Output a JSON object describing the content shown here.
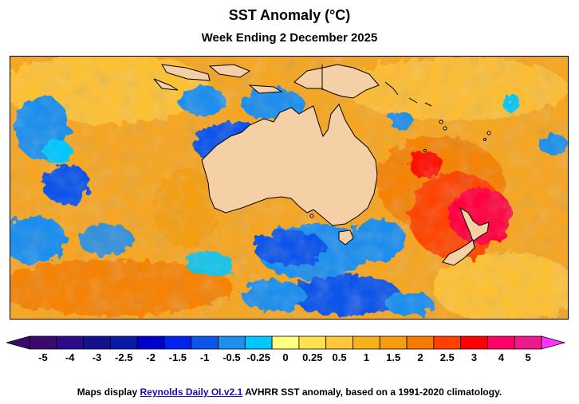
{
  "header": {
    "title": "SST Anomaly (°C)",
    "subtitle": "Week Ending 2 December 2025"
  },
  "colorbar": {
    "tick_labels": [
      "-5",
      "-4",
      "-3",
      "-2.5",
      "-2",
      "-1.5",
      "-1",
      "-0.5",
      "-0.25",
      "0",
      "0.25",
      "0.5",
      "1",
      "1.5",
      "2",
      "2.5",
      "3",
      "4",
      "5"
    ],
    "colors": [
      "#3a0a6e",
      "#2b0a8c",
      "#14108f",
      "#0a1aa8",
      "#0000cc",
      "#0022ee",
      "#0b55ea",
      "#1f8fee",
      "#00c8ff",
      "#ffff80",
      "#ffe14d",
      "#ffc83a",
      "#f7b218",
      "#f59d0c",
      "#f57c00",
      "#ff4000",
      "#ff0000",
      "#ff0066",
      "#ee1a8c"
    ],
    "under_color": "#3a0a6e",
    "over_color": "#ff33ff"
  },
  "footer": {
    "prefix": "Maps display ",
    "link_text": "Reynolds Daily OI.v2.1",
    "suffix": " AVHRR SST anomaly, based on a 1991-2020 climatology."
  },
  "map": {
    "land_color": "#f5d0a6",
    "ocean_base_color": "#f5a623",
    "regions": [
      "Australia",
      "Tasmania",
      "New Guinea",
      "New Zealand",
      "Indonesia"
    ]
  }
}
